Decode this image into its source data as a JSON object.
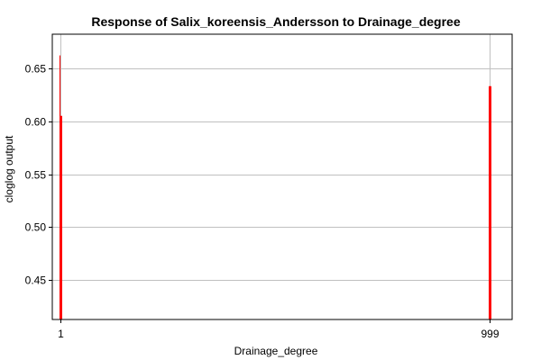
{
  "chart_data": {
    "type": "bar",
    "title": "Response of Salix_koreensis_Andersson to Drainage_degree",
    "xlabel": "Drainage_degree",
    "ylabel": "cloglog output",
    "categories": [
      "1",
      "999"
    ],
    "xlim": [
      1,
      999
    ],
    "ylim": [
      0.413,
      0.682
    ],
    "x_ticks": [
      "1",
      "999"
    ],
    "y_ticks": [
      0.45,
      0.5,
      0.55,
      0.6,
      0.65
    ],
    "y_tick_labels": [
      "0.45",
      "0.50",
      "0.55",
      "0.60",
      "0.65"
    ],
    "grid": true,
    "bars": [
      {
        "x": 1,
        "value": 0.662,
        "role": "upper"
      },
      {
        "x": 1,
        "value": 0.605,
        "role": "mean"
      },
      {
        "x": 1,
        "value": 0.425,
        "role": "lower"
      },
      {
        "x": 999,
        "value": 0.633,
        "role": "upper"
      },
      {
        "x": 999,
        "value": 0.633,
        "role": "mean"
      },
      {
        "x": 999,
        "value": 0.415,
        "role": "lower"
      }
    ],
    "colors": {
      "bar": "#ff0000",
      "grid": "#c0c0c0",
      "axis": "#000000"
    }
  }
}
